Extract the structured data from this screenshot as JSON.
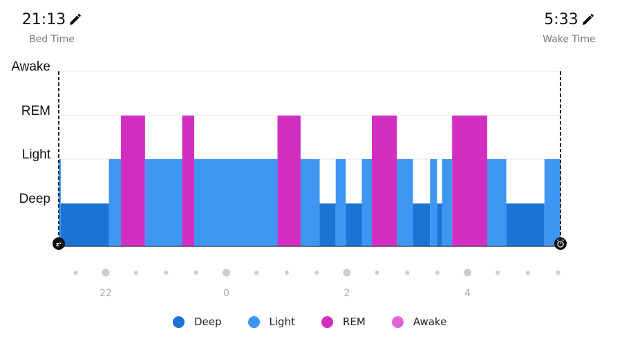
{
  "bed_time": {
    "value": "21:13",
    "label": "Bed Time",
    "icon": "pencil-icon"
  },
  "wake_time": {
    "value": "5:33",
    "label": "Wake Time",
    "icon": "pencil-icon"
  },
  "start_icon": "sleep-zzz-icon",
  "end_icon": "alarm-clock-icon",
  "colors": {
    "Deep": "#1b74d3",
    "Light": "#3d97f2",
    "REM": "#d22ec2",
    "Awake": "#e063d5",
    "grid": "#e3e3e3",
    "tick_dot": "#cccccc",
    "tick_label": "#aaaaaa"
  },
  "chart_data": {
    "type": "hypnogram",
    "stage_levels": [
      "Deep",
      "Light",
      "REM",
      "Awake"
    ],
    "x_unit": "hour",
    "xlim": [
      21.2167,
      5.55
    ],
    "x_tick_labels": [
      "22",
      "0",
      "2",
      "4"
    ],
    "x_tick_values": [
      22,
      0,
      2,
      4
    ],
    "minor_ticks_every_hours": 0.5,
    "segments": [
      {
        "stage": "Light",
        "start": "21:13",
        "end": "21:15"
      },
      {
        "stage": "Deep",
        "start": "21:15",
        "end": "22:03"
      },
      {
        "stage": "Light",
        "start": "22:03",
        "end": "22:15"
      },
      {
        "stage": "REM",
        "start": "22:15",
        "end": "22:39"
      },
      {
        "stage": "Light",
        "start": "22:39",
        "end": "23:16"
      },
      {
        "stage": "REM",
        "start": "23:16",
        "end": "23:28"
      },
      {
        "stage": "Light",
        "start": "23:28",
        "end": "0:51"
      },
      {
        "stage": "REM",
        "start": "0:51",
        "end": "1:14"
      },
      {
        "stage": "Light",
        "start": "1:14",
        "end": "1:33"
      },
      {
        "stage": "Deep",
        "start": "1:33",
        "end": "1:49"
      },
      {
        "stage": "Light",
        "start": "1:49",
        "end": "1:59"
      },
      {
        "stage": "Deep",
        "start": "1:59",
        "end": "2:15"
      },
      {
        "stage": "Light",
        "start": "2:15",
        "end": "2:25"
      },
      {
        "stage": "REM",
        "start": "2:25",
        "end": "2:50"
      },
      {
        "stage": "Light",
        "start": "2:50",
        "end": "3:06"
      },
      {
        "stage": "Deep",
        "start": "3:06",
        "end": "3:23"
      },
      {
        "stage": "Light",
        "start": "3:23",
        "end": "3:30"
      },
      {
        "stage": "Deep",
        "start": "3:30",
        "end": "3:35"
      },
      {
        "stage": "Light",
        "start": "3:35",
        "end": "3:45"
      },
      {
        "stage": "REM",
        "start": "3:45",
        "end": "4:20"
      },
      {
        "stage": "Light",
        "start": "4:20",
        "end": "4:39"
      },
      {
        "stage": "Deep",
        "start": "4:39",
        "end": "5:17"
      },
      {
        "stage": "Light",
        "start": "5:17",
        "end": "5:33"
      }
    ]
  },
  "legend": [
    "Deep",
    "Light",
    "REM",
    "Awake"
  ]
}
